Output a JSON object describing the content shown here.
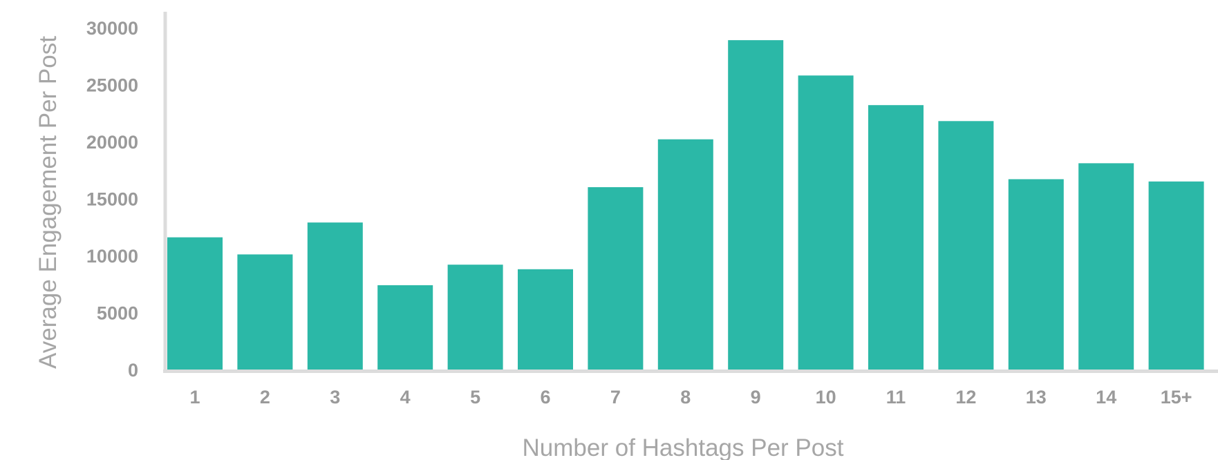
{
  "chart_data": {
    "type": "bar",
    "title": "",
    "xlabel": "Number of Hashtags Per Post",
    "ylabel": "Average Engagement Per Post",
    "categories": [
      "1",
      "2",
      "3",
      "4",
      "5",
      "6",
      "7",
      "8",
      "9",
      "10",
      "11",
      "12",
      "13",
      "14",
      "15+"
    ],
    "values": [
      11600,
      10100,
      12900,
      7400,
      9200,
      8800,
      16000,
      20200,
      28900,
      25800,
      23200,
      21800,
      16700,
      18100,
      16500
    ],
    "ylim": [
      0,
      30000
    ],
    "yticks": [
      "0",
      "5000",
      "10000",
      "15000",
      "20000",
      "25000",
      "30000"
    ],
    "grid": false,
    "legend": "none",
    "bar_color": "#2bb8a7",
    "axis_color": "#dcdcdc",
    "tick_color": "#9a9a9a",
    "title_color": "#a6a6a6"
  }
}
